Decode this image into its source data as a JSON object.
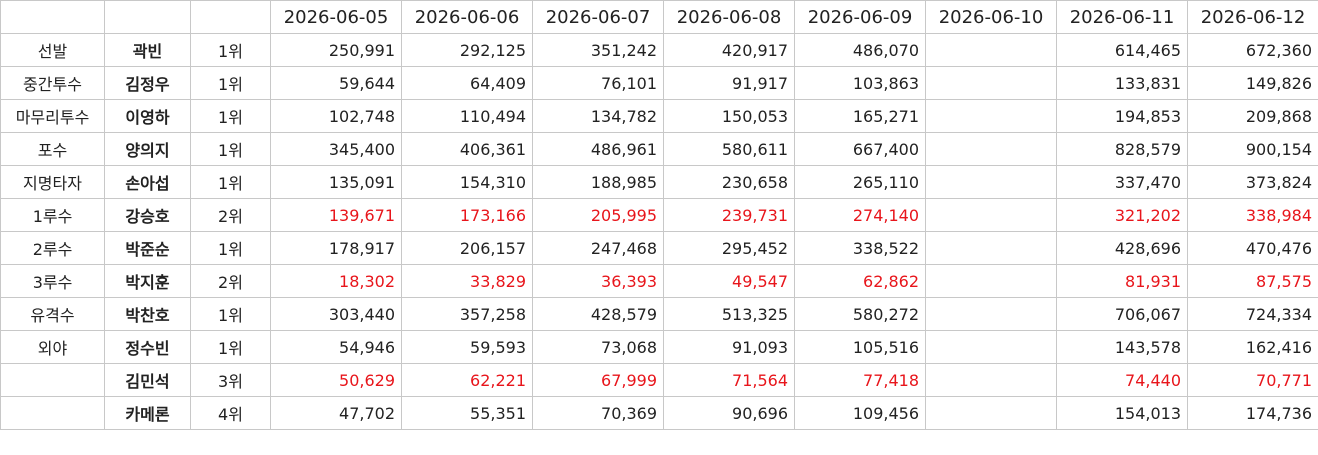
{
  "table": {
    "dates": [
      "2026-06-05",
      "2026-06-06",
      "2026-06-07",
      "2026-06-08",
      "2026-06-09",
      "2026-06-10",
      "2026-06-11",
      "2026-06-12"
    ],
    "rows": [
      {
        "position": "선발",
        "name": "곽빈",
        "rank": "1위",
        "color": "#222222",
        "values": [
          "250,991",
          "292,125",
          "351,242",
          "420,917",
          "486,070",
          null,
          "614,465",
          "672,360"
        ]
      },
      {
        "position": "중간투수",
        "name": "김정우",
        "rank": "1위",
        "color": "#222222",
        "values": [
          "59,644",
          "64,409",
          "76,101",
          "91,917",
          "103,863",
          null,
          "133,831",
          "149,826"
        ]
      },
      {
        "position": "마무리투수",
        "name": "이영하",
        "rank": "1위",
        "color": "#222222",
        "values": [
          "102,748",
          "110,494",
          "134,782",
          "150,053",
          "165,271",
          null,
          "194,853",
          "209,868"
        ]
      },
      {
        "position": "포수",
        "name": "양의지",
        "rank": "1위",
        "color": "#222222",
        "values": [
          "345,400",
          "406,361",
          "486,961",
          "580,611",
          "667,400",
          null,
          "828,579",
          "900,154"
        ]
      },
      {
        "position": "지명타자",
        "name": "손아섭",
        "rank": "1위",
        "color": "#222222",
        "values": [
          "135,091",
          "154,310",
          "188,985",
          "230,658",
          "265,110",
          null,
          "337,470",
          "373,824"
        ]
      },
      {
        "position": "1루수",
        "name": "강승호",
        "rank": "2위",
        "color": "#e8151b",
        "values": [
          "139,671",
          "173,166",
          "205,995",
          "239,731",
          "274,140",
          null,
          "321,202",
          "338,984"
        ]
      },
      {
        "position": "2루수",
        "name": "박준순",
        "rank": "1위",
        "color": "#222222",
        "values": [
          "178,917",
          "206,157",
          "247,468",
          "295,452",
          "338,522",
          null,
          "428,696",
          "470,476"
        ]
      },
      {
        "position": "3루수",
        "name": "박지훈",
        "rank": "2위",
        "color": "#e8151b",
        "values": [
          "18,302",
          "33,829",
          "36,393",
          "49,547",
          "62,862",
          null,
          "81,931",
          "87,575"
        ]
      },
      {
        "position": "유격수",
        "name": "박찬호",
        "rank": "1위",
        "color": "#222222",
        "values": [
          "303,440",
          "357,258",
          "428,579",
          "513,325",
          "580,272",
          null,
          "706,067",
          "724,334"
        ]
      },
      {
        "position": "외야",
        "name": "정수빈",
        "rank": "1위",
        "color": "#222222",
        "values": [
          "54,946",
          "59,593",
          "73,068",
          "91,093",
          "105,516",
          null,
          "143,578",
          "162,416"
        ]
      },
      {
        "position": null,
        "name": "김민석",
        "rank": "3위",
        "color": "#e8151b",
        "values": [
          "50,629",
          "62,221",
          "67,999",
          "71,564",
          "77,418",
          null,
          "74,440",
          "70,771"
        ]
      },
      {
        "position": null,
        "name": "카메론",
        "rank": "4위",
        "color": "#222222",
        "values": [
          "47,702",
          "55,351",
          "70,369",
          "90,696",
          "109,456",
          null,
          "154,013",
          "174,736"
        ]
      }
    ]
  }
}
